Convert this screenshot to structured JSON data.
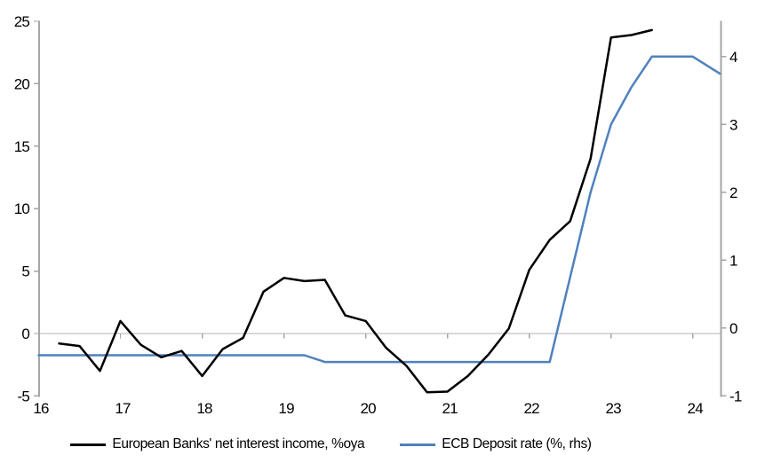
{
  "page": {
    "background": "#ffffff"
  },
  "colors": {
    "axis": "#a6a6a6",
    "gridline": "#b3b3b3",
    "tick_text": "#000000",
    "series_nii": "#000000",
    "series_ecb": "#4f81bd"
  },
  "legend": {
    "items": [
      {
        "label": "European Banks' net interest income, %oya",
        "color": "#000000"
      },
      {
        "label": "ECB Deposit rate (%, rhs)",
        "color": "#4f81bd"
      }
    ]
  },
  "chart_data": {
    "type": "line",
    "title": "",
    "xlabel": "",
    "ylabel_left": "",
    "ylabel_right": "",
    "grid": "zero-line-only",
    "legend_position": "bottom",
    "x_axis": {
      "min": 16,
      "max": 24.34,
      "ticks": [
        16,
        17,
        18,
        19,
        20,
        21,
        22,
        23,
        24
      ]
    },
    "y_axis_left": {
      "min": -5,
      "max": 25,
      "ticks": [
        25,
        20,
        15,
        10,
        5,
        0,
        -5
      ],
      "zero_gridline": true
    },
    "y_axis_right": {
      "min": -1,
      "max": 4.52,
      "ticks": [
        4,
        3,
        2,
        1,
        0,
        -1
      ]
    },
    "series": [
      {
        "name": "European Banks' net interest income, %oya",
        "axis": "left",
        "color": "#000000",
        "x": [
          16.25,
          16.5,
          16.75,
          17.0,
          17.25,
          17.5,
          17.75,
          18.0,
          18.25,
          18.5,
          18.75,
          19.0,
          19.25,
          19.5,
          19.75,
          20.0,
          20.25,
          20.5,
          20.75,
          21.0,
          21.25,
          21.5,
          21.75,
          22.0,
          22.25,
          22.5,
          22.75,
          23.0,
          23.25,
          23.5
        ],
        "y": [
          -0.8,
          -1.0,
          -3.0,
          1.0,
          -0.9,
          -1.9,
          -1.4,
          -3.4,
          -1.25,
          -0.35,
          3.35,
          4.45,
          4.2,
          4.3,
          1.45,
          1.0,
          -1.15,
          -2.6,
          -4.7,
          -4.65,
          -3.4,
          -1.7,
          0.4,
          5.1,
          7.5,
          9.0,
          14.0,
          23.7,
          23.9,
          24.3
        ]
      },
      {
        "name": "ECB Deposit rate (%, rhs)",
        "axis": "right",
        "color": "#4f81bd",
        "x": [
          16.0,
          16.25,
          16.5,
          16.75,
          17.0,
          17.25,
          17.5,
          17.75,
          18.0,
          18.25,
          18.5,
          18.75,
          19.0,
          19.25,
          19.5,
          19.75,
          20.0,
          20.25,
          20.5,
          20.75,
          21.0,
          21.25,
          21.5,
          21.75,
          22.0,
          22.25,
          22.5,
          22.75,
          23.0,
          23.25,
          23.5,
          23.75,
          24.0,
          24.33
        ],
        "y": [
          -0.4,
          -0.4,
          -0.4,
          -0.4,
          -0.4,
          -0.4,
          -0.4,
          -0.4,
          -0.4,
          -0.4,
          -0.4,
          -0.4,
          -0.4,
          -0.4,
          -0.5,
          -0.5,
          -0.5,
          -0.5,
          -0.5,
          -0.5,
          -0.5,
          -0.5,
          -0.5,
          -0.5,
          -0.5,
          -0.5,
          0.75,
          2.0,
          3.0,
          3.55,
          4.0,
          4.0,
          4.0,
          3.75
        ]
      }
    ]
  }
}
